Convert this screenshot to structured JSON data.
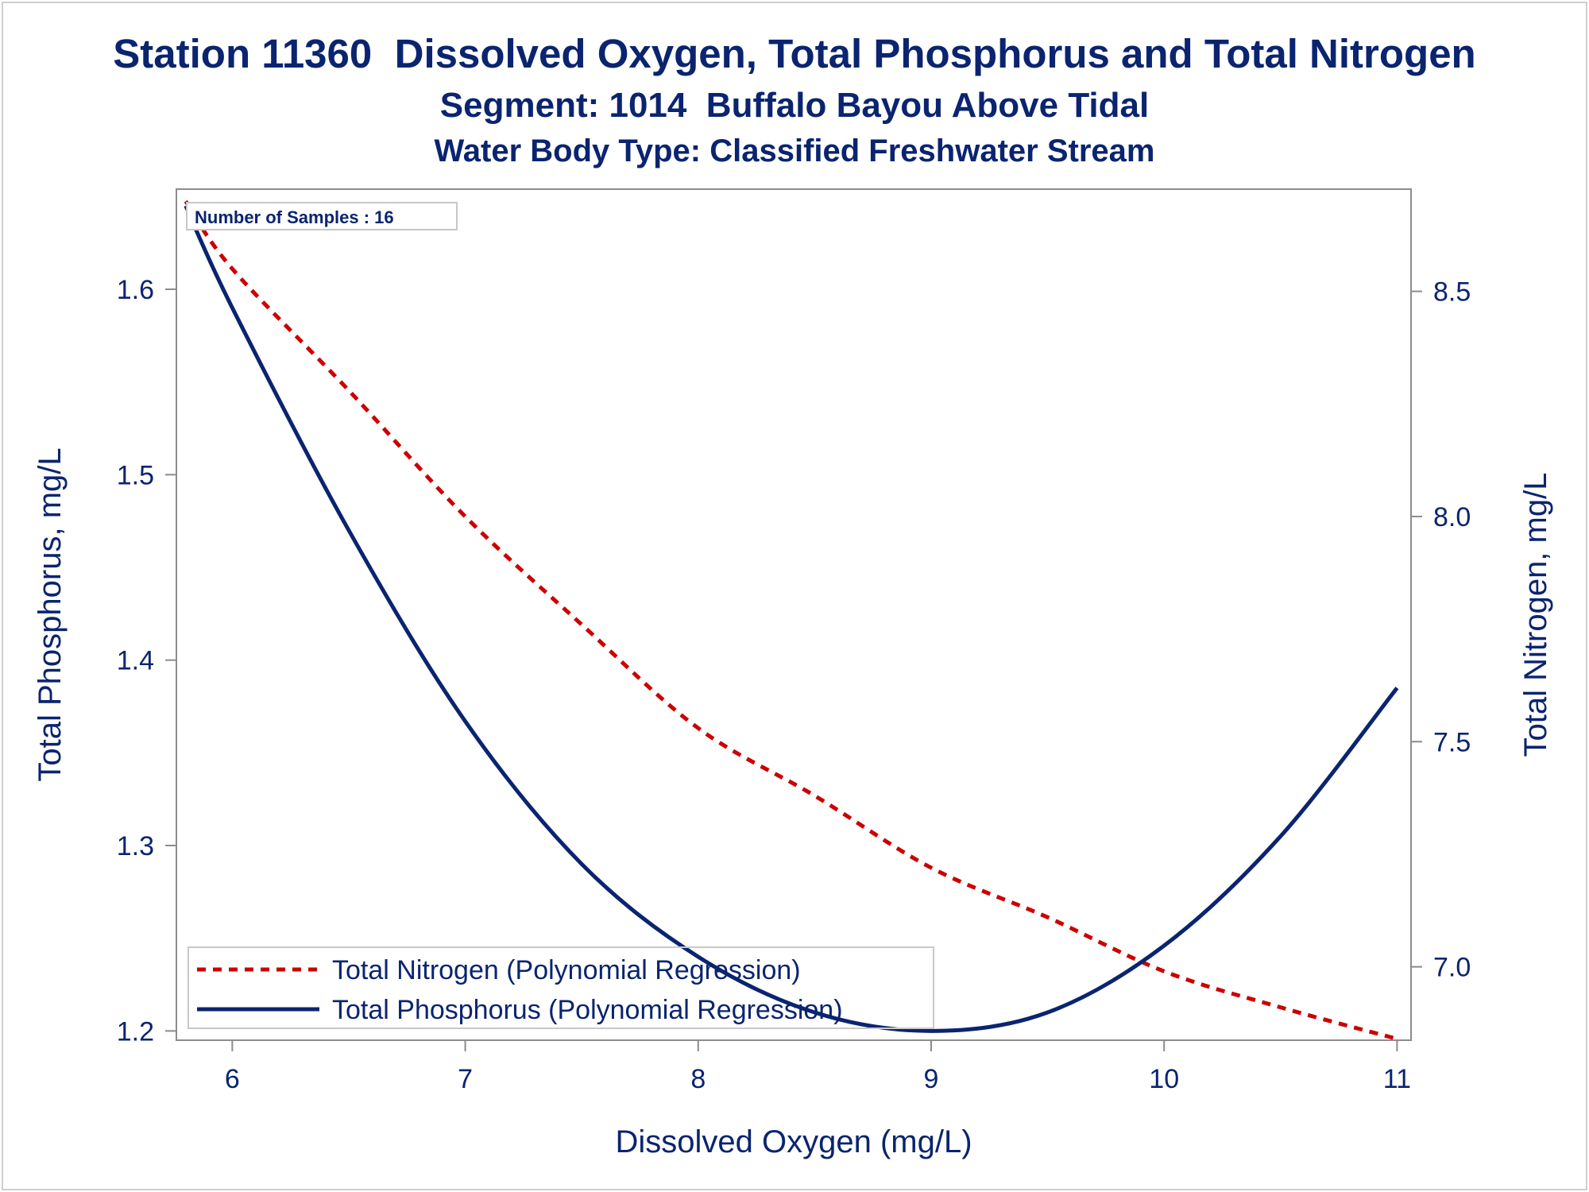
{
  "titles": {
    "line1": "Station 11360  Dissolved Oxygen, Total Phosphorus and Total Nitrogen",
    "line2": "Segment: 1014  Buffalo Bayou Above Tidal",
    "line3": "Water Body Type: Classified Freshwater Stream"
  },
  "annotation": "Number of Samples : 16",
  "colors": {
    "text": "#0a2470",
    "phosphorus": "#0a2470",
    "nitrogen": "#cc0000",
    "axis": "#8c8c8c"
  },
  "chart_data": {
    "type": "line",
    "xlabel": "Dissolved Oxygen (mg/L)",
    "ylabel": "Total Phosphorus, mg/L",
    "y2label": "Total Nitrogen, mg/L",
    "xlim": [
      5.76,
      11.06
    ],
    "ylim": [
      1.195,
      1.654
    ],
    "y2lim": [
      6.837,
      8.727
    ],
    "x_ticks": [
      "6",
      "7",
      "8",
      "9",
      "10",
      "11"
    ],
    "y_ticks": [
      "1.2",
      "1.3",
      "1.4",
      "1.5",
      "1.6"
    ],
    "y2_ticks": [
      "7.0",
      "7.5",
      "8.0",
      "8.5"
    ],
    "legend_position": "bottom-left",
    "series": [
      {
        "name": "Total Nitrogen (Polynomial Regression)",
        "axis": "right",
        "style": "dashed",
        "x": [
          5.8,
          6.0,
          6.5,
          7.0,
          7.5,
          8.0,
          8.5,
          9.0,
          9.5,
          10.0,
          10.5,
          11.0
        ],
        "y": [
          8.7,
          8.55,
          8.28,
          8.0,
          7.76,
          7.53,
          7.38,
          7.22,
          7.11,
          6.99,
          6.91,
          6.84
        ]
      },
      {
        "name": "Total Phosphorus (Polynomial Regression)",
        "axis": "left",
        "style": "solid",
        "x": [
          5.8,
          6.0,
          6.5,
          7.0,
          7.5,
          8.0,
          8.5,
          9.0,
          9.5,
          10.0,
          10.5,
          11.0
        ],
        "y": [
          1.645,
          1.59,
          1.47,
          1.367,
          1.29,
          1.24,
          1.21,
          1.2,
          1.21,
          1.246,
          1.305,
          1.385
        ]
      }
    ]
  }
}
